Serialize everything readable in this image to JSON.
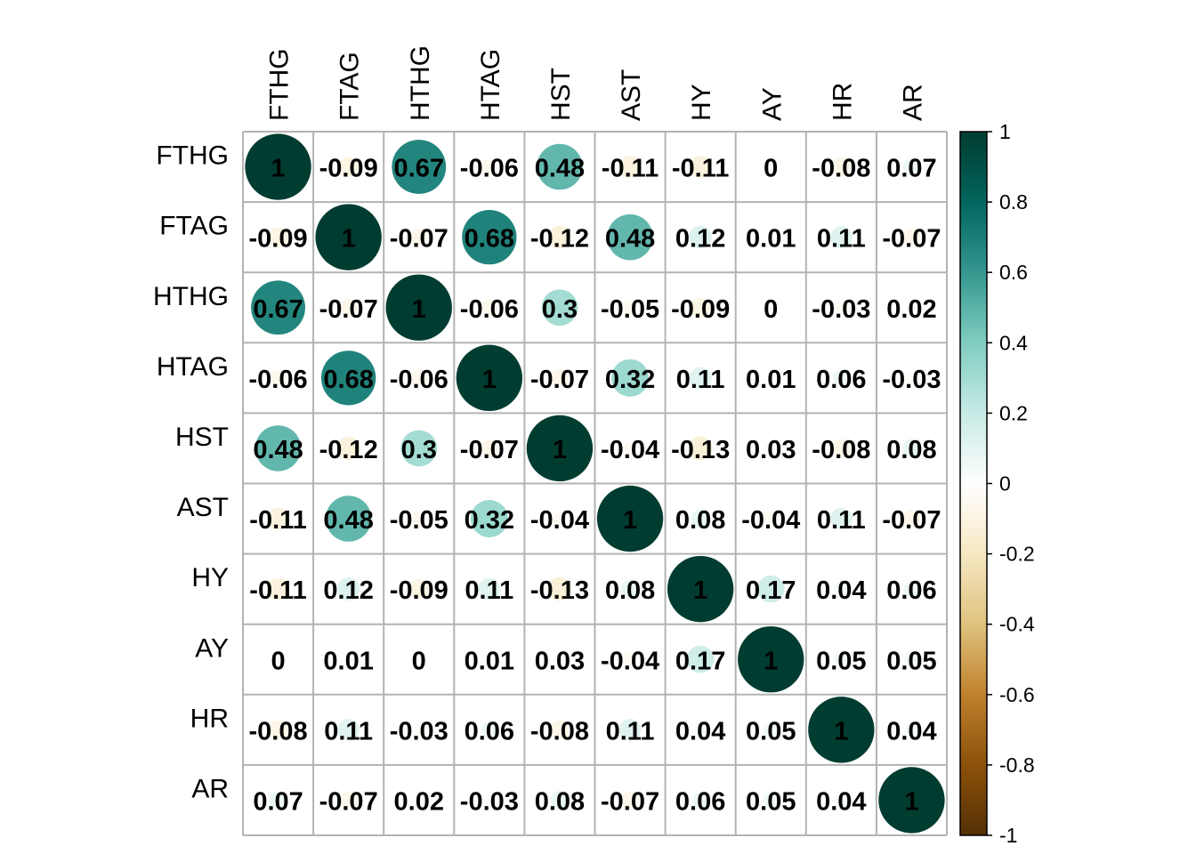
{
  "chart_data": {
    "type": "heatmap",
    "variables": [
      "FTHG",
      "FTAG",
      "HTHG",
      "HTAG",
      "HST",
      "AST",
      "HY",
      "AY",
      "HR",
      "AR"
    ],
    "matrix": [
      [
        1,
        -0.09,
        0.67,
        -0.06,
        0.48,
        -0.11,
        -0.11,
        0,
        -0.08,
        0.07
      ],
      [
        -0.09,
        1,
        -0.07,
        0.68,
        -0.12,
        0.48,
        0.12,
        0.01,
        0.11,
        -0.07
      ],
      [
        0.67,
        -0.07,
        1,
        -0.06,
        0.3,
        -0.05,
        -0.09,
        0,
        -0.03,
        0.02
      ],
      [
        -0.06,
        0.68,
        -0.06,
        1,
        -0.07,
        0.32,
        0.11,
        0.01,
        0.06,
        -0.03
      ],
      [
        0.48,
        -0.12,
        0.3,
        -0.07,
        1,
        -0.04,
        -0.13,
        0.03,
        -0.08,
        0.08
      ],
      [
        -0.11,
        0.48,
        -0.05,
        0.32,
        -0.04,
        1,
        0.08,
        -0.04,
        0.11,
        -0.07
      ],
      [
        -0.11,
        0.12,
        -0.09,
        0.11,
        -0.13,
        0.08,
        1,
        0.17,
        0.04,
        0.06
      ],
      [
        0,
        0.01,
        0,
        0.01,
        0.03,
        -0.04,
        0.17,
        1,
        0.05,
        0.05
      ],
      [
        -0.08,
        0.11,
        -0.03,
        0.06,
        -0.08,
        0.11,
        0.04,
        0.05,
        1,
        0.04
      ],
      [
        0.07,
        -0.07,
        0.02,
        -0.03,
        0.08,
        -0.07,
        0.06,
        0.05,
        0.04,
        1
      ]
    ],
    "value_range": [
      -1,
      1
    ],
    "colorbar": {
      "ticks": [
        1,
        0.8,
        0.6,
        0.4,
        0.2,
        0,
        -0.2,
        -0.4,
        -0.6,
        -0.8,
        -1
      ],
      "tick_labels": [
        "1",
        "0.8",
        "0.6",
        "0.4",
        "0.2",
        "0",
        "-0.2",
        "-0.4",
        "-0.6",
        "-0.8",
        "-1"
      ],
      "position": "right"
    },
    "colors": {
      "scale": [
        "#543005",
        "#8C510A",
        "#BF812D",
        "#DFC27D",
        "#F6E8C3",
        "#FFFFFF",
        "#C7EAE5",
        "#80CDC1",
        "#35978F",
        "#01665E",
        "#003C30"
      ],
      "grid": "#b3b3b3",
      "text": "#000000"
    },
    "marker": "circle",
    "title": "",
    "xlabel": "",
    "ylabel": ""
  }
}
